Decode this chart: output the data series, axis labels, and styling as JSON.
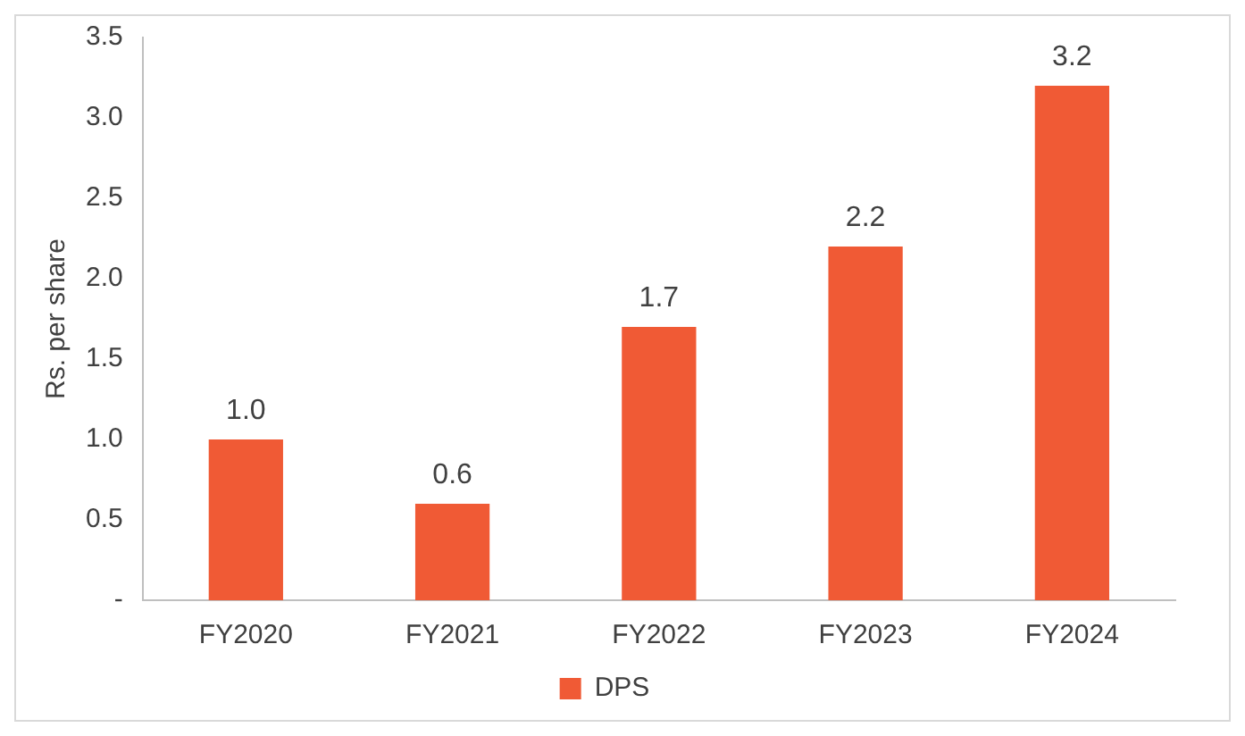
{
  "chart_data": {
    "type": "bar",
    "ylabel": "Rs. per share",
    "categories": [
      "FY2020",
      "FY2021",
      "FY2022",
      "FY2023",
      "FY2024"
    ],
    "series": [
      {
        "name": "DPS",
        "color": "#f05a35",
        "values": [
          1.0,
          0.6,
          1.7,
          2.2,
          3.2
        ],
        "value_labels": [
          "1.0",
          "0.6",
          "1.7",
          "2.2",
          "3.2"
        ]
      }
    ],
    "ylim": [
      0,
      3.5
    ],
    "yticks": [
      {
        "value": 0,
        "label": "-"
      },
      {
        "value": 0.5,
        "label": "0.5"
      },
      {
        "value": 1,
        "label": "1.0"
      },
      {
        "value": 1.5,
        "label": "1.5"
      },
      {
        "value": 2,
        "label": "2.0"
      },
      {
        "value": 2.5,
        "label": "2.5"
      },
      {
        "value": 3,
        "label": "3.0"
      },
      {
        "value": 3.5,
        "label": "3.5"
      }
    ],
    "grid": false,
    "legend": "bottom"
  }
}
